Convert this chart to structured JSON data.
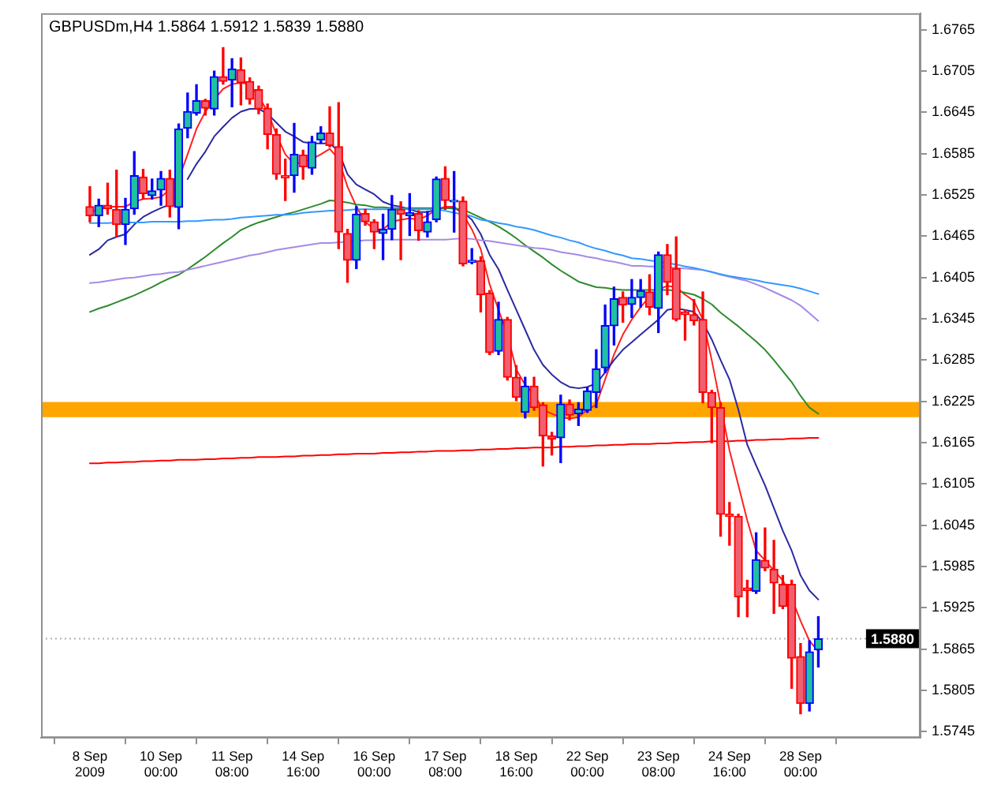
{
  "chart_data": {
    "type": "candlestick",
    "title": "GBPUSDm,H4 1.5864 1.5912 1.5839 1.5880",
    "categories": [
      "8 Sep 2009",
      null,
      null,
      null,
      null,
      null,
      null,
      null,
      "10 Sep 00:00",
      null,
      null,
      null,
      null,
      null,
      null,
      null,
      "11 Sep 08:00",
      null,
      null,
      null,
      null,
      null,
      null,
      null,
      "14 Sep 16:00",
      null,
      null,
      null,
      null,
      null,
      null,
      null,
      "16 Sep 00:00",
      null,
      null,
      null,
      null,
      null,
      null,
      null,
      "17 Sep 08:00",
      null,
      null,
      null,
      null,
      null,
      null,
      null,
      "18 Sep 16:00",
      null,
      null,
      null,
      null,
      null,
      null,
      null,
      "22 Sep 00:00",
      null,
      null,
      null,
      null,
      null,
      null,
      null,
      "23 Sep 08:00",
      null,
      null,
      null,
      null,
      null,
      null,
      null,
      "24 Sep 16:00",
      null,
      null,
      null,
      null,
      null,
      null,
      null,
      "28 Sep 00:00",
      null,
      null
    ],
    "ohlc": [
      [
        1.6508,
        1.6537,
        1.6486,
        1.6495
      ],
      [
        1.6495,
        1.6519,
        1.6479,
        1.651
      ],
      [
        1.651,
        1.6542,
        1.6497,
        1.6505
      ],
      [
        1.6504,
        1.6561,
        1.6464,
        1.6482
      ],
      [
        1.6482,
        1.652,
        1.6453,
        1.6504
      ],
      [
        1.6505,
        1.6588,
        1.6497,
        1.6553
      ],
      [
        1.6551,
        1.6562,
        1.6519,
        1.6527
      ],
      [
        1.6524,
        1.6548,
        1.6519,
        1.6531
      ],
      [
        1.6532,
        1.6559,
        1.651,
        1.6549
      ],
      [
        1.6549,
        1.6561,
        1.6493,
        1.6508
      ],
      [
        1.6507,
        1.6628,
        1.6476,
        1.6621
      ],
      [
        1.6622,
        1.6673,
        1.6608,
        1.6646
      ],
      [
        1.6644,
        1.6685,
        1.6641,
        1.6662
      ],
      [
        1.6662,
        1.6664,
        1.6641,
        1.6651
      ],
      [
        1.665,
        1.6705,
        1.6641,
        1.6697
      ],
      [
        1.6697,
        1.6739,
        1.6686,
        1.669
      ],
      [
        1.6692,
        1.6723,
        1.6653,
        1.6708
      ],
      [
        1.6707,
        1.6724,
        1.6656,
        1.6688
      ],
      [
        1.669,
        1.6695,
        1.6657,
        1.6664
      ],
      [
        1.6678,
        1.6683,
        1.6643,
        1.665
      ],
      [
        1.6651,
        1.6657,
        1.6592,
        1.6613
      ],
      [
        1.6613,
        1.6621,
        1.6548,
        1.6555
      ],
      [
        1.6553,
        1.6577,
        1.6517,
        1.655
      ],
      [
        1.6553,
        1.6629,
        1.6529,
        1.6584
      ],
      [
        1.6583,
        1.659,
        1.6548,
        1.6566
      ],
      [
        1.6564,
        1.661,
        1.6555,
        1.6602
      ],
      [
        1.6605,
        1.6624,
        1.66,
        1.6615
      ],
      [
        1.6615,
        1.6653,
        1.6595,
        1.6597
      ],
      [
        1.6595,
        1.6659,
        1.6447,
        1.6471
      ],
      [
        1.6469,
        1.6475,
        1.6398,
        1.643
      ],
      [
        1.643,
        1.6508,
        1.6418,
        1.6497
      ],
      [
        1.6498,
        1.6504,
        1.6481,
        1.6486
      ],
      [
        1.6486,
        1.6489,
        1.6447,
        1.6471
      ],
      [
        1.6469,
        1.6497,
        1.6431,
        1.6475
      ],
      [
        1.6475,
        1.6524,
        1.646,
        1.6504
      ],
      [
        1.6504,
        1.6515,
        1.6431,
        1.6497
      ],
      [
        1.6495,
        1.6527,
        1.6466,
        1.6499
      ],
      [
        1.6498,
        1.6502,
        1.6459,
        1.6473
      ],
      [
        1.6471,
        1.6501,
        1.6464,
        1.6486
      ],
      [
        1.6489,
        1.6551,
        1.6486,
        1.6548
      ],
      [
        1.6549,
        1.6566,
        1.6504,
        1.6517
      ],
      [
        1.6515,
        1.6559,
        1.6471,
        1.6517
      ],
      [
        1.6516,
        1.6522,
        1.6422,
        1.6425
      ],
      [
        1.6427,
        1.6447,
        1.6425,
        1.643
      ],
      [
        1.6429,
        1.6435,
        1.6355,
        1.638
      ],
      [
        1.6382,
        1.6386,
        1.6293,
        1.6296
      ],
      [
        1.6298,
        1.6369,
        1.6293,
        1.6344
      ],
      [
        1.6344,
        1.6347,
        1.6256,
        1.626
      ],
      [
        1.626,
        1.6277,
        1.6226,
        1.6231
      ],
      [
        1.6209,
        1.626,
        1.6201,
        1.6247
      ],
      [
        1.6247,
        1.626,
        1.6212,
        1.6216
      ],
      [
        1.622,
        1.6223,
        1.6131,
        1.6175
      ],
      [
        1.6175,
        1.618,
        1.6147,
        1.617
      ],
      [
        1.6172,
        1.6234,
        1.6136,
        1.6221
      ],
      [
        1.6221,
        1.6227,
        1.6198,
        1.6205
      ],
      [
        1.6207,
        1.6223,
        1.619,
        1.6214
      ],
      [
        1.6212,
        1.6245,
        1.6209,
        1.624
      ],
      [
        1.6238,
        1.63,
        1.6216,
        1.6272
      ],
      [
        1.6274,
        1.6365,
        1.6267,
        1.6335
      ],
      [
        1.6335,
        1.6391,
        1.6307,
        1.6374
      ],
      [
        1.6376,
        1.6384,
        1.634,
        1.6365
      ],
      [
        1.6366,
        1.6402,
        1.6347,
        1.6376
      ],
      [
        1.6376,
        1.6402,
        1.6362,
        1.6386
      ],
      [
        1.6384,
        1.6409,
        1.6351,
        1.6362
      ],
      [
        1.636,
        1.6442,
        1.6325,
        1.6438
      ],
      [
        1.6438,
        1.6453,
        1.638,
        1.6398
      ],
      [
        1.6418,
        1.6464,
        1.6342,
        1.6344
      ],
      [
        1.6355,
        1.6358,
        1.6314,
        1.6351
      ],
      [
        1.6351,
        1.6373,
        1.6336,
        1.6342
      ],
      [
        1.6344,
        1.6384,
        1.6223,
        1.6238
      ],
      [
        1.6238,
        1.6241,
        1.6165,
        1.6216
      ],
      [
        1.6216,
        1.6223,
        1.6029,
        1.6061
      ],
      [
        1.6061,
        1.6078,
        1.6016,
        1.6058
      ],
      [
        1.6058,
        1.6061,
        1.5912,
        1.5941
      ],
      [
        1.5954,
        1.5965,
        1.5912,
        1.595
      ],
      [
        1.5949,
        1.6034,
        1.5946,
        1.5995
      ],
      [
        1.5994,
        1.6041,
        1.5979,
        1.5983
      ],
      [
        1.5981,
        1.6023,
        1.5917,
        1.5961
      ],
      [
        1.5959,
        1.5972,
        1.5924,
        1.5927
      ],
      [
        1.5959,
        1.5965,
        1.5808,
        1.5852
      ],
      [
        1.5854,
        1.5873,
        1.5771,
        1.5786
      ],
      [
        1.5786,
        1.5877,
        1.5775,
        1.5861
      ],
      [
        1.5864,
        1.5912,
        1.5839,
        1.588
      ]
    ],
    "series": [
      {
        "type": "line",
        "color": "#3399ff",
        "values": [
          1.6484,
          1.6484,
          1.6484,
          1.6485,
          1.6485,
          1.6485,
          1.6485,
          1.6486,
          1.6486,
          1.6486,
          1.6486,
          1.6487,
          1.6487,
          1.6488,
          1.6489,
          1.6489,
          1.649,
          1.6492,
          1.6493,
          1.6494,
          1.6495,
          1.6496,
          1.6496,
          1.6497,
          1.6499,
          1.65,
          1.6501,
          1.6502,
          1.6502,
          1.6503,
          1.6504,
          1.6504,
          1.6504,
          1.6504,
          1.6504,
          1.6504,
          1.6504,
          1.6504,
          1.6504,
          1.6504,
          1.6502,
          1.6499,
          1.6497,
          1.6494,
          1.6489,
          1.6487,
          1.6484,
          1.6482,
          1.6479,
          1.6477,
          1.6474,
          1.647,
          1.6466,
          1.6463,
          1.6459,
          1.6456,
          1.6451,
          1.6447,
          1.6444,
          1.644,
          1.6437,
          1.6433,
          1.6432,
          1.643,
          1.6428,
          1.6426,
          1.6424,
          1.6421,
          1.6419,
          1.6416,
          1.6413,
          1.641,
          1.6407,
          1.6405,
          1.6403,
          1.6401,
          1.6398,
          1.6396,
          1.6394,
          1.6392,
          1.6389,
          1.6385,
          1.6381
        ]
      },
      {
        "type": "line",
        "color": "#a58be6",
        "values": [
          1.6397,
          1.6398,
          1.64,
          1.6402,
          1.6404,
          1.6405,
          1.6407,
          1.6409,
          1.641,
          1.6412,
          1.6413,
          1.6416,
          1.6419,
          1.6422,
          1.6425,
          1.6428,
          1.6431,
          1.6434,
          1.6437,
          1.6439,
          1.6442,
          1.6445,
          1.6447,
          1.6449,
          1.6451,
          1.6453,
          1.6455,
          1.6455,
          1.6456,
          1.6457,
          1.6458,
          1.6459,
          1.6459,
          1.646,
          1.646,
          1.646,
          1.646,
          1.646,
          1.646,
          1.646,
          1.646,
          1.6461,
          1.6462,
          1.6461,
          1.6459,
          1.6458,
          1.6456,
          1.6454,
          1.6452,
          1.645,
          1.6448,
          1.6447,
          1.6445,
          1.6442,
          1.644,
          1.6438,
          1.6435,
          1.6433,
          1.643,
          1.6428,
          1.6425,
          1.6422,
          1.6422,
          1.6421,
          1.6421,
          1.642,
          1.6419,
          1.6418,
          1.6417,
          1.6416,
          1.6413,
          1.6409,
          1.6406,
          1.6403,
          1.64,
          1.6395,
          1.639,
          1.6384,
          1.6378,
          1.6372,
          1.6364,
          1.6353,
          1.6342
        ]
      },
      {
        "type": "line",
        "color": "#2e8b2e",
        "values": [
          1.6355,
          1.636,
          1.6364,
          1.6369,
          1.6374,
          1.6379,
          1.6385,
          1.6391,
          1.6398,
          1.6404,
          1.6409,
          1.6417,
          1.6426,
          1.6435,
          1.6445,
          1.6455,
          1.6464,
          1.6474,
          1.648,
          1.6485,
          1.6489,
          1.6493,
          1.6497,
          1.65,
          1.6504,
          1.6508,
          1.6512,
          1.6517,
          1.6516,
          1.6514,
          1.6511,
          1.651,
          1.6507,
          1.6507,
          1.6506,
          1.6506,
          1.6506,
          1.6506,
          1.6506,
          1.6506,
          1.6506,
          1.6505,
          1.6504,
          1.6498,
          1.6492,
          1.6486,
          1.6479,
          1.6471,
          1.6462,
          1.6452,
          1.6443,
          1.6434,
          1.6424,
          1.6415,
          1.6407,
          1.6399,
          1.6395,
          1.6391,
          1.639,
          1.6388,
          1.6387,
          1.6387,
          1.6387,
          1.6387,
          1.6387,
          1.6387,
          1.6386,
          1.6383,
          1.638,
          1.6374,
          1.6366,
          1.6354,
          1.6344,
          1.6334,
          1.6323,
          1.6312,
          1.63,
          1.6285,
          1.6269,
          1.6253,
          1.6233,
          1.6216,
          1.6207
        ]
      },
      {
        "type": "line",
        "color": "#2a2aa0",
        "values": [
          1.6438,
          1.6446,
          1.6459,
          1.6464,
          1.6468,
          1.6482,
          1.6493,
          1.65,
          1.6506,
          1.6511,
          null,
          1.6548,
          1.657,
          1.6588,
          1.661,
          1.6624,
          1.6637,
          1.6646,
          1.665,
          1.665,
          1.6643,
          1.663,
          1.6617,
          1.661,
          1.6602,
          1.66,
          1.66,
          1.66,
          1.6588,
          1.6555,
          1.654,
          1.6533,
          1.6526,
          1.6515,
          1.651,
          1.6508,
          1.6504,
          1.65,
          1.65,
          1.6504,
          1.6506,
          1.6506,
          1.65,
          1.6489,
          1.6468,
          1.6438,
          1.6417,
          1.6387,
          1.6358,
          1.6329,
          1.63,
          1.6278,
          1.6264,
          1.6253,
          1.6246,
          1.6244,
          1.6246,
          1.6251,
          1.6267,
          1.6285,
          1.63,
          1.6311,
          1.6322,
          1.6333,
          1.6344,
          1.6358,
          1.636,
          1.6358,
          1.6355,
          1.634,
          1.6315,
          1.6285,
          1.6257,
          1.6213,
          1.6162,
          1.6132,
          1.6103,
          1.607,
          1.6037,
          1.6008,
          1.5972,
          1.595,
          1.5937
        ]
      },
      {
        "type": "line",
        "color": "#ff2020",
        "values": [
          1.65,
          1.6504,
          1.6508,
          1.6508,
          1.6508,
          1.6515,
          1.6519,
          1.652,
          1.6522,
          1.6533,
          1.6548,
          1.6584,
          1.6621,
          1.6646,
          1.6664,
          1.6679,
          1.6686,
          1.6688,
          1.6686,
          1.6668,
          1.6646,
          1.6613,
          1.6584,
          1.657,
          1.6573,
          1.6577,
          1.6584,
          1.6592,
          1.6577,
          1.6537,
          1.6508,
          1.6486,
          1.6475,
          1.6475,
          1.6486,
          1.6489,
          1.6491,
          1.6489,
          1.6495,
          1.6504,
          1.6508,
          1.6508,
          1.6497,
          1.6475,
          1.6446,
          1.6395,
          1.6358,
          1.6322,
          1.6271,
          1.6249,
          1.6235,
          1.6213,
          1.6207,
          1.6202,
          1.62,
          1.6202,
          1.6213,
          1.622,
          1.6257,
          1.6293,
          1.6322,
          1.6344,
          1.6362,
          1.6377,
          1.6387,
          1.6393,
          1.6391,
          1.638,
          1.6371,
          1.6344,
          1.6285,
          1.622,
          1.6154,
          1.6103,
          1.6052,
          1.6008,
          1.5994,
          1.5979,
          1.5965,
          1.5939,
          1.5906,
          1.5877,
          1.5862
        ]
      },
      {
        "type": "line",
        "color": "#ff0000",
        "values": [
          1.6135,
          1.6135,
          1.6136,
          1.6136,
          1.6137,
          1.6137,
          1.6138,
          1.6138,
          1.6139,
          1.6139,
          1.614,
          1.614,
          1.614,
          1.6141,
          1.6141,
          1.6142,
          1.6142,
          1.6143,
          1.6143,
          1.6144,
          1.6144,
          1.6144,
          1.6145,
          1.6145,
          1.6146,
          1.6146,
          1.6147,
          1.6147,
          1.6148,
          1.6148,
          1.6149,
          1.6149,
          1.6149,
          1.615,
          1.615,
          1.6151,
          1.6151,
          1.6152,
          1.6152,
          1.6153,
          1.6153,
          1.6153,
          1.6154,
          1.6154,
          1.6155,
          1.6155,
          1.6156,
          1.6156,
          1.6157,
          1.6157,
          1.6158,
          1.6158,
          1.6158,
          1.6159,
          1.6159,
          1.616,
          1.616,
          1.6161,
          1.6161,
          1.6162,
          1.6162,
          1.6163,
          1.6163,
          1.6163,
          1.6164,
          1.6164,
          1.6165,
          1.6165,
          1.6166,
          1.6166,
          1.6167,
          1.6167,
          1.6167,
          1.6168,
          1.6168,
          1.6169,
          1.6169,
          1.617,
          1.617,
          1.6171,
          1.6171,
          1.6172,
          1.6172
        ]
      }
    ],
    "ylim": [
      1.5736,
      1.6789
    ],
    "yticks": [
      1.5745,
      1.5805,
      1.5865,
      1.5925,
      1.5985,
      1.6045,
      1.6105,
      1.6165,
      1.6225,
      1.6285,
      1.6345,
      1.6405,
      1.6465,
      1.6525,
      1.6585,
      1.6645,
      1.6705,
      1.6765
    ],
    "bands": [
      {
        "axis": "y",
        "from": 1.6202,
        "to": 1.6224,
        "color": "#ffa500"
      }
    ],
    "ref_lines": [
      {
        "axis": "y",
        "value": 1.588,
        "label": "1.5880",
        "color": "#b0b0b0",
        "line_style": "dotted"
      }
    ]
  }
}
